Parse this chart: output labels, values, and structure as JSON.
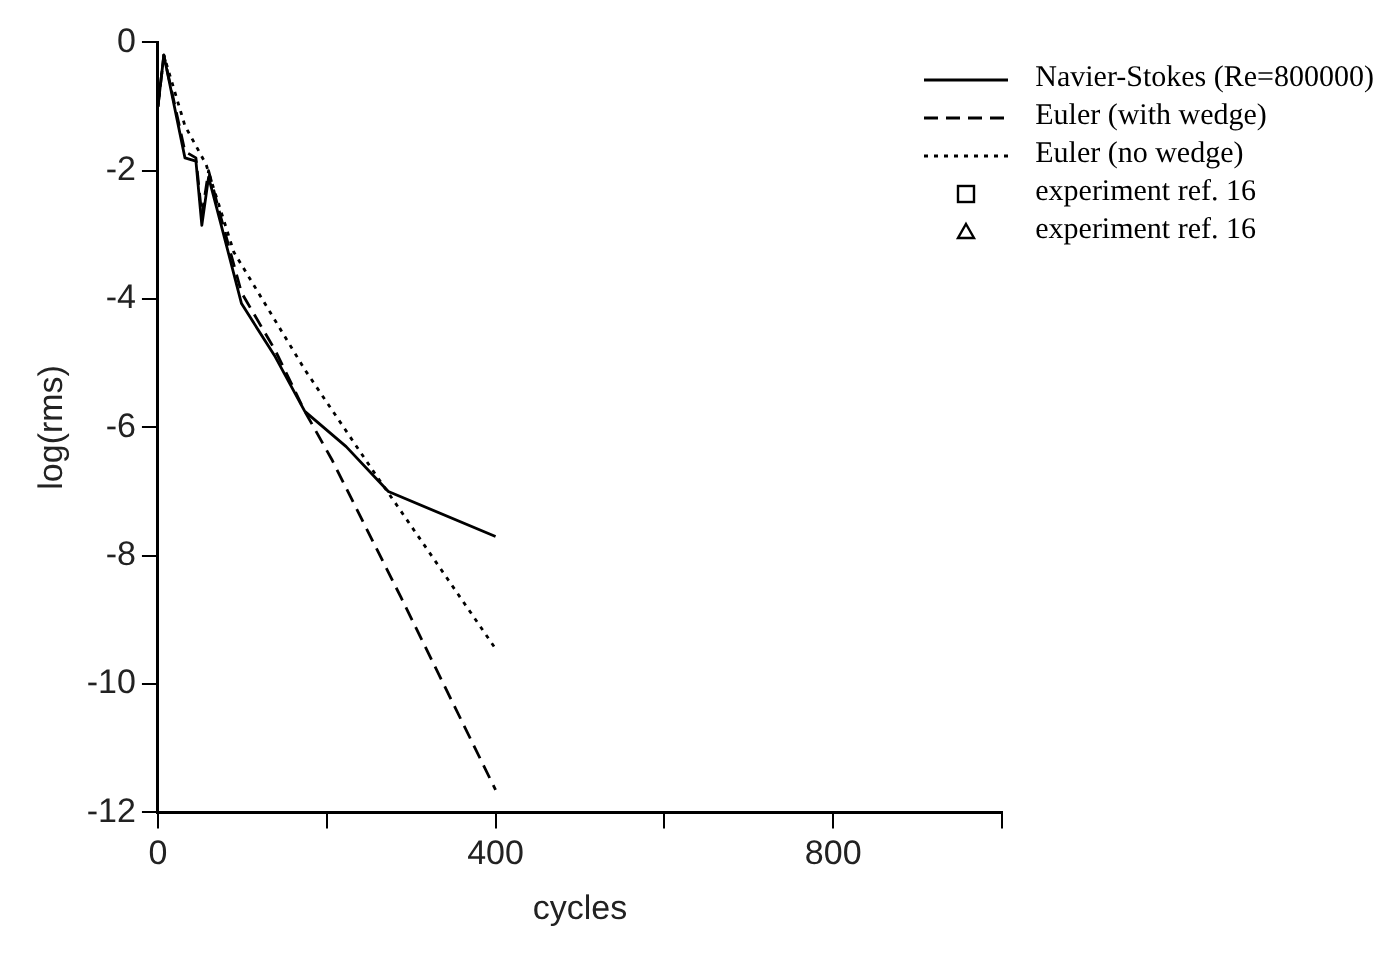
{
  "chart_data": {
    "type": "line",
    "xlabel": "cycles",
    "ylabel": "log(rms)",
    "xlim": [
      0,
      1000
    ],
    "ylim": [
      -12,
      0
    ],
    "xticks": [
      0,
      {
        "value": 200,
        "label": null
      },
      400,
      {
        "value": 600,
        "label": null
      },
      800,
      {
        "value": 1000,
        "label": null
      }
    ],
    "yticks": [
      -12,
      -10,
      -8,
      -6,
      -4,
      -2,
      0
    ],
    "grid": false,
    "legend": "top right",
    "marker": "none",
    "series": [
      {
        "name": "Navier-Stokes (Re=800000)",
        "color": "#000000",
        "line_style": "solid",
        "x": [
          0,
          7,
          32,
          45,
          52,
          60,
          74,
          99,
          139,
          174,
          223,
          273,
          400
        ],
        "values": [
          -1.0,
          -0.2,
          -1.8,
          -1.85,
          -2.85,
          -2.1,
          -2.8,
          -4.07,
          -4.9,
          -5.75,
          -6.3,
          -7.0,
          -7.7
        ]
      },
      {
        "name": "Euler (with wedge)",
        "color": "#000000",
        "line_style": "dashed",
        "x": [
          0,
          7,
          32,
          45,
          52,
          60,
          74,
          99,
          139,
          174,
          206,
          288,
          400
        ],
        "values": [
          -1.0,
          -0.2,
          -1.7,
          -1.8,
          -2.7,
          -2.0,
          -2.7,
          -3.9,
          -4.8,
          -5.75,
          -6.5,
          -8.65,
          -11.65
        ]
      },
      {
        "name": "Euler (no wedge)",
        "color": "#000000",
        "line_style": "dotted",
        "x": [
          0,
          7,
          32,
          57,
          90,
          174,
          256,
          285,
          400
        ],
        "values": [
          -1.0,
          -0.2,
          -1.3,
          -1.9,
          -3.27,
          -5.1,
          -6.7,
          -7.25,
          -9.45
        ]
      },
      {
        "name": "experiment ref. 16",
        "type": "scatter",
        "marker": "square",
        "color": "#000000"
      },
      {
        "name": "experiment ref. 16",
        "type": "scatter",
        "marker": "triangle",
        "color": "#000000"
      }
    ]
  }
}
